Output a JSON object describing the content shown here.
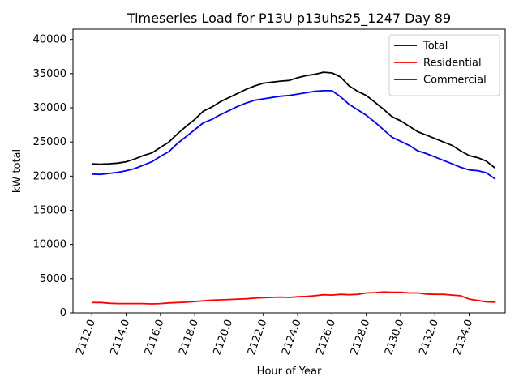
{
  "chart_data": {
    "type": "line",
    "title": "Timeseries Load for P13U p13uhs25_1247  Day 89",
    "xlabel": "Hour of Year",
    "ylabel": "kW total",
    "xlim": [
      2110.9,
      2136.1
    ],
    "ylim": [
      0,
      41500
    ],
    "xticks": [
      2112,
      2114,
      2116,
      2118,
      2120,
      2122,
      2124,
      2126,
      2128,
      2130,
      2132,
      2134
    ],
    "xtick_labels": [
      "2112.0",
      "2114.0",
      "2116.0",
      "2118.0",
      "2120.0",
      "2122.0",
      "2124.0",
      "2126.0",
      "2128.0",
      "2130.0",
      "2132.0",
      "2134.0"
    ],
    "yticks": [
      0,
      5000,
      10000,
      15000,
      20000,
      25000,
      30000,
      35000,
      40000
    ],
    "ytick_labels": [
      "0",
      "5000",
      "10000",
      "15000",
      "20000",
      "25000",
      "30000",
      "35000",
      "40000"
    ],
    "legend_position": "top-right",
    "x": [
      2112.0,
      2112.5,
      2113.0,
      2113.5,
      2114.0,
      2114.5,
      2115.0,
      2115.5,
      2116.0,
      2116.5,
      2117.0,
      2117.5,
      2118.0,
      2118.5,
      2119.0,
      2119.5,
      2120.0,
      2120.5,
      2121.0,
      2121.5,
      2122.0,
      2122.5,
      2123.0,
      2123.5,
      2124.0,
      2124.5,
      2125.0,
      2125.5,
      2126.0,
      2126.5,
      2127.0,
      2127.5,
      2128.0,
      2128.5,
      2129.0,
      2129.5,
      2130.0,
      2130.5,
      2131.0,
      2131.5,
      2132.0,
      2132.5,
      2133.0,
      2133.5,
      2134.0,
      2134.5,
      2135.0,
      2135.5
    ],
    "series": [
      {
        "name": "Total",
        "color": "#000000",
        "values": [
          21800,
          21750,
          21800,
          21900,
          22100,
          22500,
          23000,
          23400,
          24200,
          25000,
          26200,
          27300,
          28300,
          29500,
          30100,
          30900,
          31500,
          32100,
          32700,
          33200,
          33600,
          33750,
          33900,
          34000,
          34400,
          34700,
          34900,
          35200,
          35100,
          34500,
          33200,
          32400,
          31800,
          30800,
          29800,
          28700,
          28100,
          27300,
          26500,
          26000,
          25500,
          25000,
          24500,
          23700,
          23000,
          22700,
          22200,
          21200
        ]
      },
      {
        "name": "Residential",
        "color": "#ff0000",
        "values": [
          1500,
          1500,
          1400,
          1350,
          1350,
          1350,
          1350,
          1300,
          1350,
          1450,
          1500,
          1550,
          1650,
          1750,
          1850,
          1900,
          1950,
          2000,
          2050,
          2150,
          2200,
          2250,
          2300,
          2250,
          2350,
          2400,
          2500,
          2650,
          2600,
          2700,
          2650,
          2700,
          2900,
          2950,
          3050,
          3000,
          3000,
          2900,
          2900,
          2750,
          2700,
          2700,
          2600,
          2500,
          2000,
          1800,
          1600,
          1550
        ]
      },
      {
        "name": "Commercial",
        "color": "#0000ff",
        "values": [
          20300,
          20250,
          20400,
          20550,
          20800,
          21100,
          21600,
          22100,
          22900,
          23600,
          24800,
          25800,
          26800,
          27800,
          28300,
          29000,
          29600,
          30200,
          30700,
          31100,
          31300,
          31500,
          31700,
          31800,
          32000,
          32200,
          32400,
          32500,
          32500,
          31600,
          30500,
          29700,
          28900,
          27900,
          26800,
          25700,
          25100,
          24500,
          23700,
          23300,
          22800,
          22300,
          21800,
          21300,
          20900,
          20800,
          20500,
          19600
        ]
      }
    ]
  }
}
